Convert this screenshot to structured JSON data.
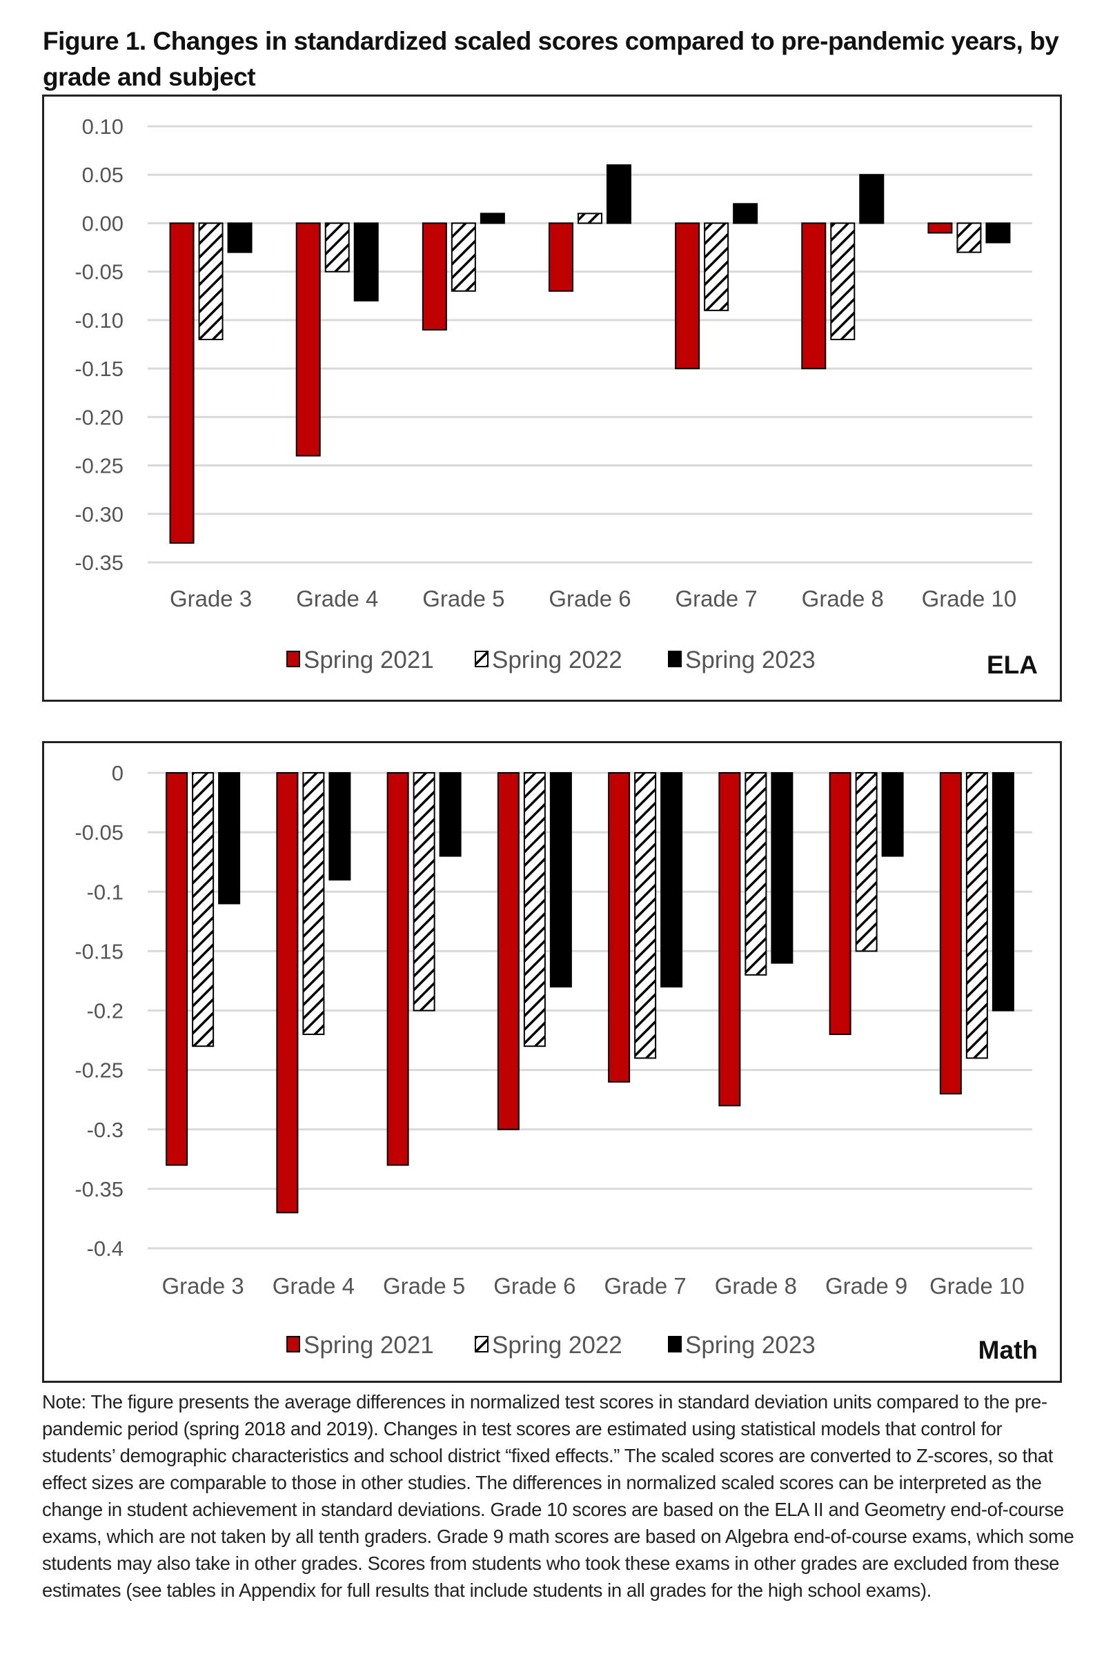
{
  "figure": {
    "title": "Figure 1. Changes in standardized scaled scores compared to pre-pandemic years, by grade and subject",
    "note": "Note: The figure presents the average differences in normalized test scores in standard deviation units compared to the pre-pandemic period (spring 2018 and 2019). Changes in test scores are estimated using statistical models that control for students’ demographic characteristics and school district “fixed effects.” The scaled scores are converted to Z-scores, so that effect sizes are comparable to those in other studies. The differences in normalized scaled scores can be interpreted as the change in student achievement in standard deviations. Grade 10 scores are based on the ELA II and Geometry end-of-course exams, which are not taken by all tenth graders. Grade 9 math scores are based on Algebra end-of-course exams, which some students may also take in other grades. Scores from students who took these exams in other grades are excluded from these estimates (see tables in Appendix for full results that include students in all grades for the high school exams)."
  },
  "colors": {
    "spring_2021": "#c00000",
    "spring_2022": "hatched",
    "spring_2023": "#000000",
    "gridline": "#d9d9d9",
    "tick_text": "#595959"
  },
  "chart_data": [
    {
      "type": "bar",
      "title": "ELA",
      "xlabel": "",
      "ylabel": "",
      "categories": [
        "Grade 3",
        "Grade 4",
        "Grade 5",
        "Grade 6",
        "Grade 7",
        "Grade 8",
        "Grade 10"
      ],
      "series": [
        {
          "name": "Spring 2021",
          "values": [
            -0.33,
            -0.24,
            -0.11,
            -0.07,
            -0.15,
            -0.15,
            -0.01
          ]
        },
        {
          "name": "Spring 2022",
          "values": [
            -0.12,
            -0.05,
            -0.07,
            0.01,
            -0.09,
            -0.12,
            -0.03
          ]
        },
        {
          "name": "Spring 2023",
          "values": [
            -0.03,
            -0.08,
            0.01,
            0.06,
            0.02,
            0.05,
            -0.02
          ]
        }
      ],
      "ylim": [
        -0.35,
        0.1
      ],
      "yticks": [
        "0.10",
        "0.05",
        "0.00",
        "-0.05",
        "-0.10",
        "-0.15",
        "-0.20",
        "-0.25",
        "-0.30",
        "-0.35"
      ],
      "ytick_values": [
        0.1,
        0.05,
        0.0,
        -0.05,
        -0.1,
        -0.15,
        -0.2,
        -0.25,
        -0.3,
        -0.35
      ],
      "grid": true,
      "legend": "bottom",
      "subject_label": "ELA"
    },
    {
      "type": "bar",
      "title": "Math",
      "xlabel": "",
      "ylabel": "",
      "categories": [
        "Grade 3",
        "Grade 4",
        "Grade 5",
        "Grade 6",
        "Grade 7",
        "Grade 8",
        "Grade 9",
        "Grade 10"
      ],
      "series": [
        {
          "name": "Spring 2021",
          "values": [
            -0.33,
            -0.37,
            -0.33,
            -0.3,
            -0.26,
            -0.28,
            -0.22,
            -0.27
          ]
        },
        {
          "name": "Spring 2022",
          "values": [
            -0.23,
            -0.22,
            -0.2,
            -0.23,
            -0.24,
            -0.17,
            -0.15,
            -0.24
          ]
        },
        {
          "name": "Spring 2023",
          "values": [
            -0.11,
            -0.09,
            -0.07,
            -0.18,
            -0.18,
            -0.16,
            -0.07,
            -0.2
          ]
        }
      ],
      "ylim": [
        -0.4,
        0
      ],
      "yticks": [
        "0",
        "-0.05",
        "-0.1",
        "-0.15",
        "-0.2",
        "-0.25",
        "-0.3",
        "-0.35",
        "-0.4"
      ],
      "ytick_values": [
        0,
        -0.05,
        -0.1,
        -0.15,
        -0.2,
        -0.25,
        -0.3,
        -0.35,
        -0.4
      ],
      "grid": true,
      "legend": "bottom",
      "subject_label": "Math"
    }
  ]
}
